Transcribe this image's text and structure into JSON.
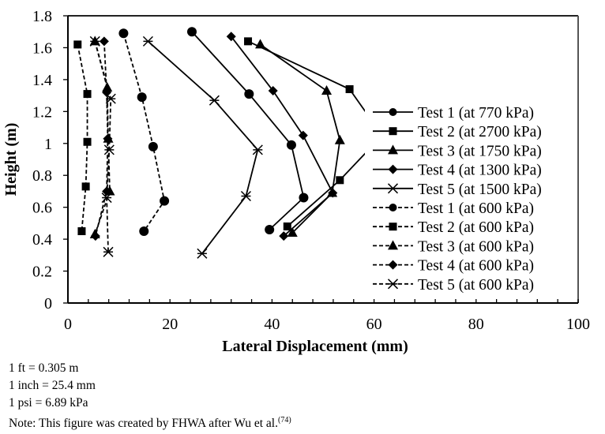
{
  "chart_data": {
    "type": "line",
    "xlabel": "Lateral Displacement (mm)",
    "ylabel": "Height (m)",
    "xlim": [
      0,
      100
    ],
    "ylim": [
      0,
      1.8
    ],
    "xticks": [
      0,
      20,
      40,
      60,
      80,
      100
    ],
    "yticks": [
      0,
      0.2,
      0.4,
      0.6,
      0.8,
      1,
      1.2,
      1.4,
      1.6,
      1.8
    ],
    "ytick_labels": [
      "0",
      "0.2",
      "0.4",
      "0.6",
      "0.8",
      "1",
      "1.2",
      "1.4",
      "1.6",
      "1.8"
    ],
    "grid": false,
    "legend_position": "right",
    "series": [
      {
        "name": "Test 1 (at 770 kPa)",
        "marker": "circle",
        "line": "solid",
        "points": [
          [
            24.3,
            1.7
          ],
          [
            35.5,
            1.31
          ],
          [
            43.8,
            0.99
          ],
          [
            46.2,
            0.66
          ],
          [
            39.5,
            0.46
          ]
        ]
      },
      {
        "name": "Test 2 (at 2700 kPa)",
        "marker": "square",
        "line": "solid",
        "points": [
          [
            35.3,
            1.64
          ],
          [
            55.2,
            1.34
          ],
          [
            61.6,
            1.05
          ],
          [
            53.3,
            0.77
          ],
          [
            43.0,
            0.48
          ]
        ]
      },
      {
        "name": "Test 3 (at 1750 kPa)",
        "marker": "triangle",
        "line": "solid",
        "points": [
          [
            37.7,
            1.62
          ],
          [
            50.7,
            1.33
          ],
          [
            53.3,
            1.02
          ],
          [
            51.8,
            0.69
          ],
          [
            44.0,
            0.44
          ]
        ]
      },
      {
        "name": "Test 4 (at 1300 kPa)",
        "marker": "diamond",
        "line": "solid",
        "points": [
          [
            32.0,
            1.67
          ],
          [
            40.2,
            1.33
          ],
          [
            46.1,
            1.05
          ],
          [
            51.9,
            0.69
          ],
          [
            42.3,
            0.42
          ]
        ]
      },
      {
        "name": "Test 5 (at 1500 kPa)",
        "marker": "star",
        "line": "solid",
        "points": [
          [
            15.7,
            1.64
          ],
          [
            28.7,
            1.27
          ],
          [
            37.2,
            0.96
          ],
          [
            34.9,
            0.67
          ],
          [
            26.3,
            0.31
          ]
        ]
      },
      {
        "name": "Test 1 (at 600 kPa)",
        "marker": "circle",
        "line": "dashed",
        "points": [
          [
            10.9,
            1.69
          ],
          [
            14.5,
            1.29
          ],
          [
            16.7,
            0.98
          ],
          [
            18.9,
            0.64
          ],
          [
            14.9,
            0.45
          ]
        ]
      },
      {
        "name": "Test 2 (at 600 kPa)",
        "marker": "square",
        "line": "dashed",
        "points": [
          [
            1.9,
            1.62
          ],
          [
            3.8,
            1.31
          ],
          [
            3.8,
            1.01
          ],
          [
            3.5,
            0.73
          ],
          [
            2.7,
            0.45
          ]
        ]
      },
      {
        "name": "Test 3 (at 600 kPa)",
        "marker": "triangle",
        "line": "dashed",
        "points": [
          [
            5.3,
            1.64
          ],
          [
            7.7,
            1.35
          ],
          [
            7.9,
            1.03
          ],
          [
            8.2,
            0.7
          ],
          [
            5.3,
            0.43
          ]
        ]
      },
      {
        "name": "Test 4 (at 600 kPa)",
        "marker": "diamond",
        "line": "dashed",
        "points": [
          [
            7.1,
            1.64
          ],
          [
            7.6,
            1.32
          ],
          [
            7.8,
            1.03
          ],
          [
            7.6,
            0.7
          ],
          [
            5.4,
            0.42
          ]
        ]
      },
      {
        "name": "Test 5 (at 600 kPa)",
        "marker": "star",
        "line": "dashed",
        "points": [
          [
            5.3,
            1.64
          ],
          [
            8.4,
            1.28
          ],
          [
            8.1,
            0.96
          ],
          [
            7.6,
            0.66
          ],
          [
            7.9,
            0.32
          ]
        ]
      }
    ]
  },
  "notes": {
    "line1": "1 ft = 0.305 m",
    "line2": "1 inch = 25.4 mm",
    "line3": "1 psi = 6.89 kPa",
    "line4": "Note: This figure was created by FHWA after Wu et al.",
    "ref": "(74)"
  }
}
